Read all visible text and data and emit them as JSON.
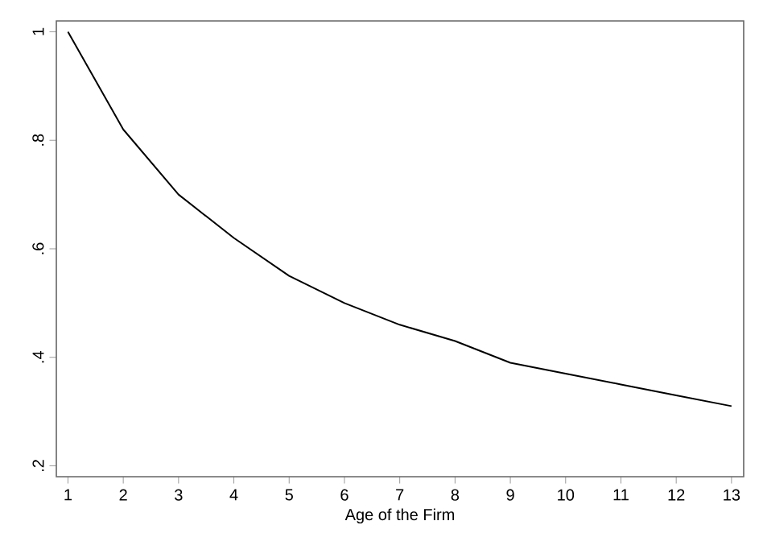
{
  "chart_data": {
    "type": "line",
    "xlabel": "Age of the Firm",
    "x": [
      1,
      2,
      3,
      4,
      5,
      6,
      7,
      8,
      9,
      10,
      11,
      12,
      13
    ],
    "values": [
      1.0,
      0.82,
      0.7,
      0.62,
      0.55,
      0.5,
      0.46,
      0.43,
      0.39,
      0.37,
      0.35,
      0.33,
      0.31
    ],
    "color": "#000000",
    "xlim": [
      0.79,
      13.22
    ],
    "ylim": [
      0.18,
      1.02
    ],
    "xticks": [
      1,
      2,
      3,
      4,
      5,
      6,
      7,
      8,
      9,
      10,
      11,
      12,
      13
    ],
    "yticks": [
      {
        "value": 0.2,
        "label": ".2"
      },
      {
        "value": 0.4,
        "label": ".4"
      },
      {
        "value": 0.6,
        "label": ".6"
      },
      {
        "value": 0.8,
        "label": ".8"
      },
      {
        "value": 1,
        "label": "1"
      }
    ],
    "grid": false
  }
}
